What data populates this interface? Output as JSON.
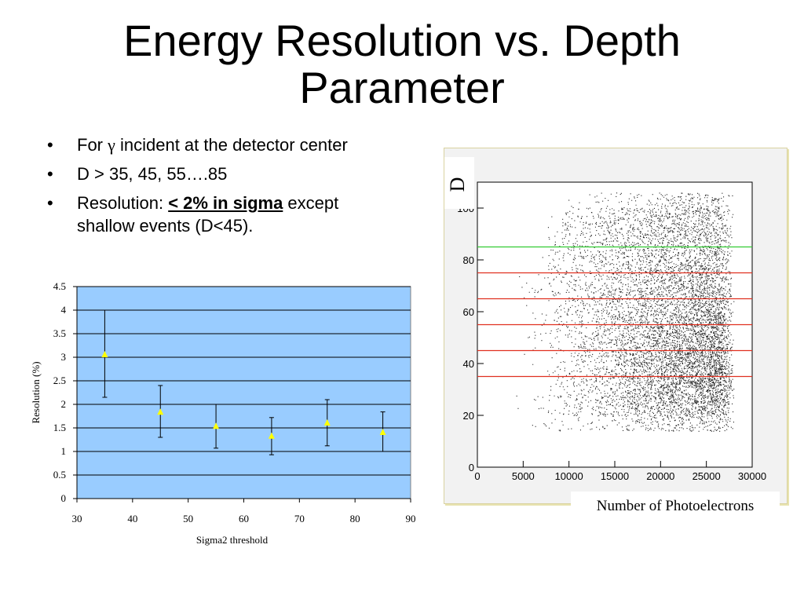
{
  "title_line1": "Energy Resolution vs. Depth",
  "title_line2": "Parameter",
  "bullets": [
    {
      "bullet": "•",
      "text_before": "For ",
      "symbol": "γ",
      "text_after": " incident at the detector center"
    },
    {
      "bullet": "•",
      "text": " D > 35, 45, 55….85"
    },
    {
      "bullet": "•",
      "prefix": " Resolution: ",
      "highlight": "< 2% in sigma",
      "suffix": " except shallow events (D<45)."
    }
  ],
  "chart_data": [
    {
      "type": "scatter",
      "xlabel": "Sigma2 threshold",
      "ylabel": "Resolution (%)",
      "xlim": [
        30,
        90
      ],
      "ylim": [
        0,
        4.5
      ],
      "x_ticks": [
        "30",
        "40",
        "50",
        "60",
        "70",
        "80",
        "90"
      ],
      "y_ticks": [
        "0",
        "0.5",
        "1",
        "1.5",
        "2",
        "2.5",
        "3",
        "3.5",
        "4",
        "4.5"
      ],
      "grid": true,
      "background": "#99ccff",
      "marker_color": "#ffff00",
      "points": [
        {
          "x": 35,
          "y": 3.05,
          "err_low": 2.15,
          "err_high": 4.0
        },
        {
          "x": 45,
          "y": 1.83,
          "err_low": 1.3,
          "err_high": 2.4
        },
        {
          "x": 55,
          "y": 1.53,
          "err_low": 1.07,
          "err_high": 2.0
        },
        {
          "x": 65,
          "y": 1.32,
          "err_low": 0.93,
          "err_high": 1.72
        },
        {
          "x": 75,
          "y": 1.6,
          "err_low": 1.12,
          "err_high": 2.1
        },
        {
          "x": 85,
          "y": 1.4,
          "err_low": 1.0,
          "err_high": 1.84
        }
      ]
    },
    {
      "type": "scatter",
      "xlabel": "Number of Photoelectrons",
      "ylabel": "D",
      "xlim": [
        0,
        30000
      ],
      "ylim": [
        0,
        110
      ],
      "x_ticks": [
        "0",
        "5000",
        "10000",
        "15000",
        "20000",
        "25000",
        "30000"
      ],
      "y_ticks": [
        "0",
        "20",
        "40",
        "60",
        "80",
        "100"
      ],
      "grid": false,
      "point_color": "#000000",
      "threshold_lines": [
        {
          "y": 35,
          "color": "#e03020"
        },
        {
          "y": 45,
          "color": "#e03020"
        },
        {
          "y": 55,
          "color": "#e03020"
        },
        {
          "y": 65,
          "color": "#e03020"
        },
        {
          "y": 75,
          "color": "#e03020"
        },
        {
          "y": 85,
          "color": "#33cc33"
        }
      ]
    }
  ]
}
